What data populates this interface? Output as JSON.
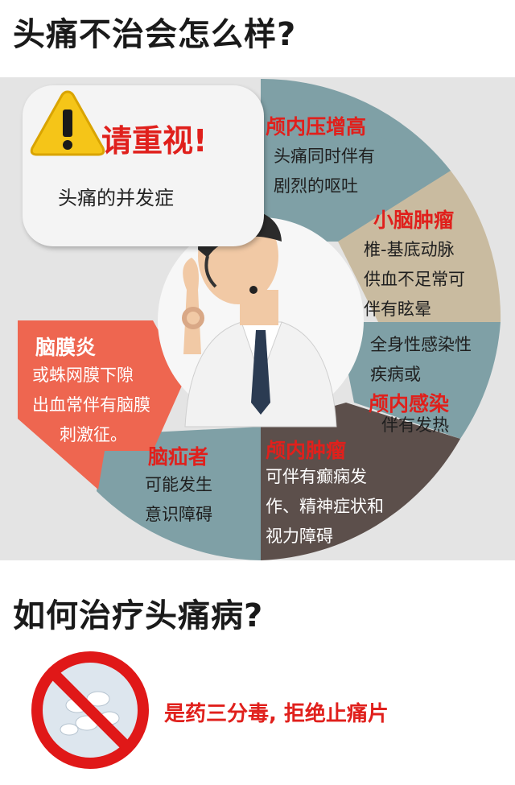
{
  "heading_top": "头痛不治会怎么样?",
  "bubble": {
    "warning": "请重视!",
    "subtitle": "头痛的并发症"
  },
  "segments": {
    "intracranial_pressure": {
      "title": "颅内压增高",
      "lines": [
        "头痛同时伴有",
        "剧烈的呕吐"
      ]
    },
    "cerebellar_tumor": {
      "title": "小脑肿瘤",
      "lines": [
        "椎-基底动脉",
        "供血不足常可",
        "伴有眩晕"
      ]
    },
    "infection": {
      "lines": [
        "全身性感染性",
        "疾病或"
      ],
      "title": "颅内感染",
      "tail": "伴有发热"
    },
    "brain_tumor": {
      "title": "颅内肿瘤",
      "lines": [
        "可伴有癫痫发",
        "作、精神症状和",
        "视力障碍"
      ]
    },
    "stroke": {
      "title": "脑疝者",
      "lines": [
        "可能发生",
        "意识障碍"
      ]
    },
    "meningitis": {
      "title": "脑膜炎",
      "lines": [
        "或蛛网膜下隙",
        "出血常伴有脑膜",
        "刺激征。"
      ]
    }
  },
  "heading_bottom": "如何治疗头痛病?",
  "advice": "是药三分毒, 拒绝止痛片",
  "colors": {
    "teal": "#7fa0a6",
    "beige": "#c9bba0",
    "brown": "#5c4f4b",
    "coral": "#ee6650",
    "red": "#e0201c",
    "band": "#e4e4e4"
  }
}
